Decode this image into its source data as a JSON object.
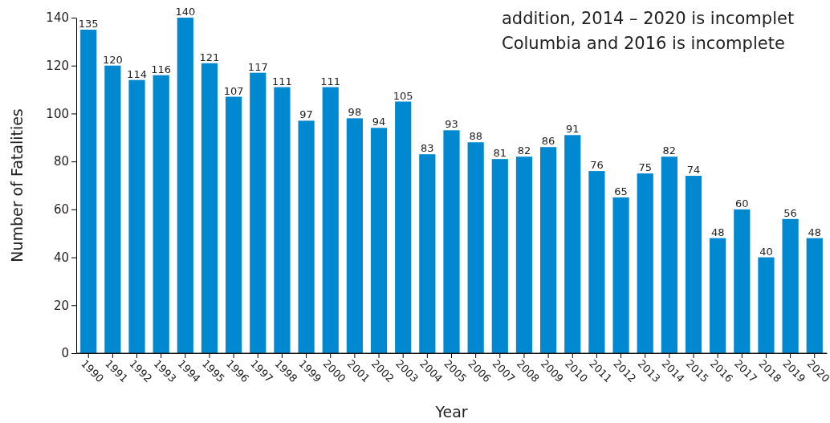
{
  "chart_data": {
    "type": "bar",
    "xlabel": "Year",
    "ylabel": "Number of Fatalities",
    "categories": [
      "1990",
      "1991",
      "1992",
      "1993",
      "1994",
      "1995",
      "1996",
      "1997",
      "1998",
      "1999",
      "2000",
      "2001",
      "2002",
      "2003",
      "2004",
      "2005",
      "2006",
      "2007",
      "2008",
      "2009",
      "2010",
      "2011",
      "2012",
      "2013",
      "2014",
      "2015",
      "2016",
      "2017",
      "2018",
      "2019",
      "2020"
    ],
    "values": [
      135,
      120,
      114,
      116,
      140,
      121,
      107,
      117,
      111,
      97,
      111,
      98,
      94,
      105,
      83,
      93,
      88,
      81,
      82,
      86,
      91,
      76,
      65,
      75,
      82,
      74,
      48,
      60,
      40,
      56,
      48
    ],
    "color": "#0088d1",
    "ylim": [
      0,
      140
    ],
    "yticks": [
      0,
      20,
      40,
      60,
      80,
      100,
      120,
      140
    ],
    "data_labels": true,
    "annotations": [
      "addition, 2014 – 2020 is incomplet",
      "Columbia and 2016 is incomplete"
    ]
  }
}
